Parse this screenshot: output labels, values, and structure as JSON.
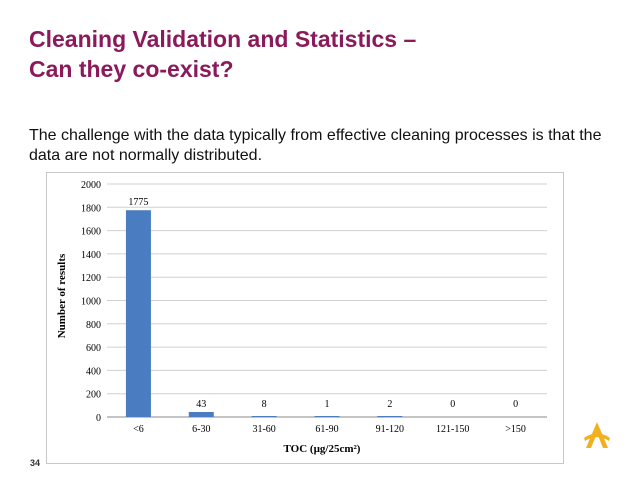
{
  "slide": {
    "title_line1": "Cleaning Validation and Statistics –",
    "title_line2": "Can they co-exist?",
    "body": "The challenge with the data typically from effective cleaning processes is that the data are not normally distributed.",
    "slide_number": "34"
  },
  "colors": {
    "title": "#8b1a5a",
    "bar": "#4a7cc1",
    "logo": "#f2b01e"
  },
  "logo": {
    "icon": "company-logo-icon"
  },
  "chart_data": {
    "type": "bar",
    "categories": [
      "<6",
      "6-30",
      "31-60",
      "61-90",
      "91-120",
      "121-150",
      ">150"
    ],
    "values": [
      1775,
      43,
      8,
      1,
      2,
      0,
      0
    ],
    "data_labels": [
      "1775",
      "43",
      "8",
      "1",
      "2",
      "0",
      "0"
    ],
    "xlabel": "TOC (µg/25cm²)",
    "ylabel": "Number of results",
    "ylim": [
      0,
      2000
    ],
    "yticks": [
      0,
      200,
      400,
      600,
      800,
      1000,
      1200,
      1400,
      1600,
      1800,
      2000
    ],
    "grid": true,
    "legend": "none"
  }
}
